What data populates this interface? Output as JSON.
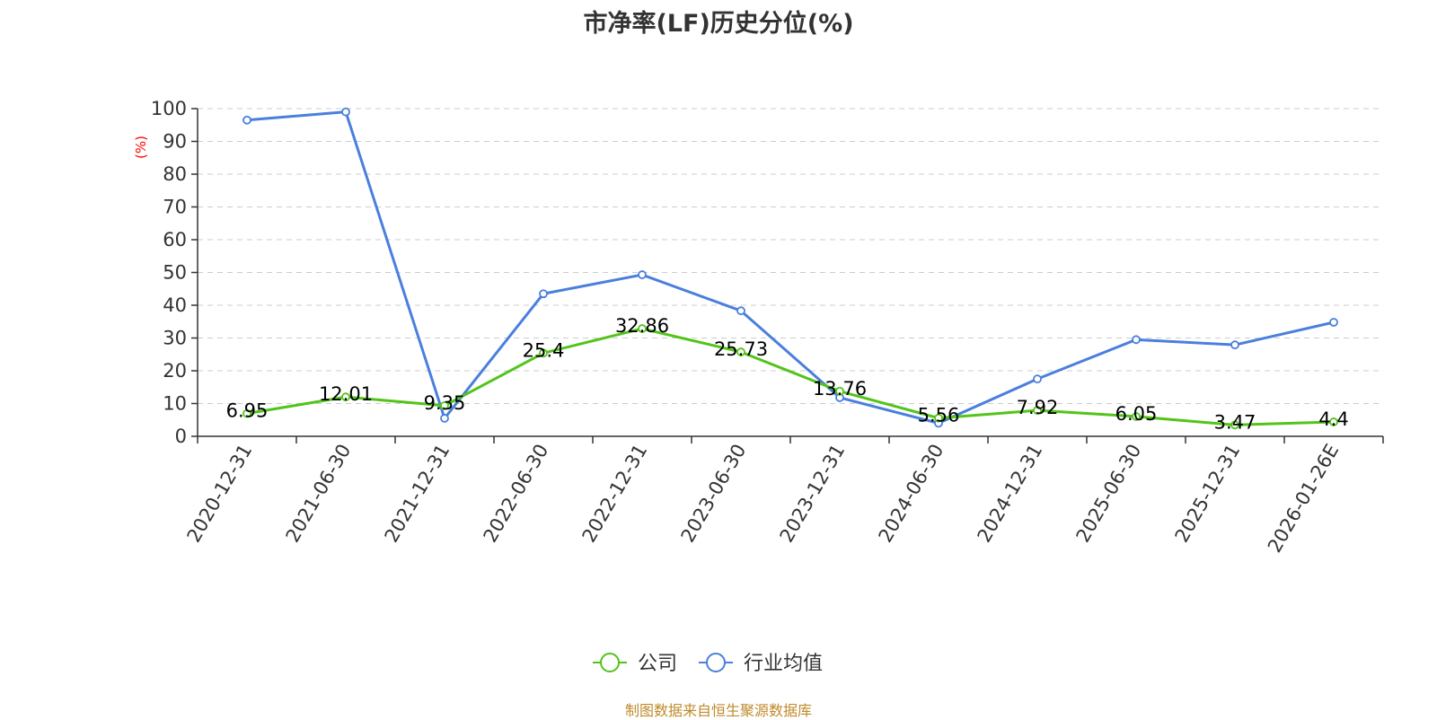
{
  "chart_data": {
    "type": "line",
    "title": "市净率(LF)历史分位(%)",
    "ylabel": "(%)",
    "xlabel": "",
    "ylim": [
      0,
      100
    ],
    "yticks": [
      0,
      10,
      20,
      30,
      40,
      50,
      60,
      70,
      80,
      90,
      100
    ],
    "grid": true,
    "legend_position": "bottom",
    "categories": [
      "2020-12-31",
      "2021-06-30",
      "2021-12-31",
      "2022-06-30",
      "2022-12-31",
      "2023-06-30",
      "2023-12-31",
      "2024-06-30",
      "2024-12-31",
      "2025-06-30",
      "2025-12-31",
      "2026-01-26E"
    ],
    "series": [
      {
        "name": "公司",
        "color": "#52c41a",
        "values": [
          6.95,
          12.01,
          9.35,
          25.4,
          32.86,
          25.73,
          13.76,
          5.56,
          7.92,
          6.05,
          3.47,
          4.4
        ],
        "labels": [
          "6.95",
          "12.01",
          "9.35",
          "25.4",
          "32.86",
          "25.73",
          "13.76",
          "5.56",
          "7.92",
          "6.05",
          "3.47",
          "4.4"
        ]
      },
      {
        "name": "行业均值",
        "color": "#4a7fdd",
        "values": [
          96.5,
          99,
          5.5,
          43.5,
          49.3,
          38.3,
          11.8,
          4.0,
          17.5,
          29.5,
          27.9,
          34.8
        ]
      }
    ]
  },
  "source_note": "制图数据来自恒生聚源数据库",
  "colors": {
    "axis": "#333333",
    "grid": "#cccccc",
    "ylabel": "#ff0000"
  }
}
